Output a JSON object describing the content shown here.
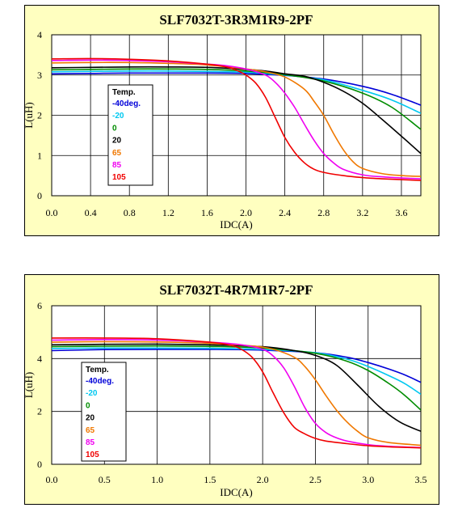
{
  "colors": {
    "panel_bg": "#ffffc0",
    "plot_bg": "#ffffff",
    "series": {
      "-40deg.": "#0000d8",
      "-20": "#00c8f0",
      "0": "#008c00",
      "20": "#000000",
      "65": "#f07800",
      "85": "#f000f0",
      "105": "#f00000"
    }
  },
  "chart_data": [
    {
      "type": "line",
      "title": "SLF7032T-3R3M1R9-2PF",
      "xlabel": "IDC(A)",
      "ylabel": "L(uH)",
      "xlim": [
        0,
        3.8
      ],
      "ylim": [
        0,
        4
      ],
      "xticks": [
        "0.0",
        "0.4",
        "0.8",
        "1.2",
        "1.6",
        "2.0",
        "2.4",
        "2.8",
        "3.2",
        "3.6"
      ],
      "yticks": [
        "0",
        "1",
        "2",
        "3",
        "4"
      ],
      "grid": true,
      "legend": {
        "title": "Temp.",
        "placement": "center-left"
      },
      "series": [
        {
          "name": "-40deg.",
          "x": [
            0,
            0.4,
            0.8,
            1.2,
            1.6,
            2.0,
            2.4,
            2.8,
            3.2,
            3.5,
            3.8
          ],
          "y": [
            3.03,
            3.04,
            3.05,
            3.05,
            3.05,
            3.04,
            2.99,
            2.9,
            2.72,
            2.52,
            2.25
          ]
        },
        {
          "name": "-20",
          "x": [
            0,
            0.4,
            0.8,
            1.2,
            1.6,
            2.0,
            2.4,
            2.8,
            3.2,
            3.5,
            3.8
          ],
          "y": [
            3.08,
            3.09,
            3.1,
            3.1,
            3.09,
            3.07,
            3.0,
            2.88,
            2.62,
            2.38,
            2.05
          ]
        },
        {
          "name": "0",
          "x": [
            0,
            0.4,
            0.8,
            1.2,
            1.6,
            2.0,
            2.4,
            2.8,
            3.2,
            3.5,
            3.8
          ],
          "y": [
            3.13,
            3.14,
            3.15,
            3.15,
            3.14,
            3.1,
            3.01,
            2.85,
            2.55,
            2.2,
            1.65
          ]
        },
        {
          "name": "20",
          "x": [
            0,
            0.4,
            0.8,
            1.2,
            1.6,
            2.0,
            2.2,
            2.4,
            2.6,
            2.8,
            3.0,
            3.2,
            3.4,
            3.6,
            3.8
          ],
          "y": [
            3.18,
            3.19,
            3.2,
            3.2,
            3.19,
            3.14,
            3.1,
            3.03,
            2.97,
            2.82,
            2.6,
            2.3,
            1.9,
            1.48,
            1.05
          ]
        },
        {
          "name": "65",
          "x": [
            0,
            0.4,
            0.8,
            1.2,
            1.6,
            2.0,
            2.2,
            2.4,
            2.6,
            2.7,
            2.8,
            2.9,
            3.0,
            3.1,
            3.2,
            3.4,
            3.6,
            3.8
          ],
          "y": [
            3.3,
            3.31,
            3.31,
            3.29,
            3.25,
            3.15,
            3.08,
            2.95,
            2.65,
            2.35,
            2.0,
            1.55,
            1.15,
            0.85,
            0.68,
            0.55,
            0.5,
            0.48
          ]
        },
        {
          "name": "85",
          "x": [
            0,
            0.4,
            0.8,
            1.2,
            1.6,
            1.8,
            2.0,
            2.2,
            2.3,
            2.4,
            2.5,
            2.6,
            2.7,
            2.8,
            2.9,
            3.0,
            3.2,
            3.4,
            3.6,
            3.8
          ],
          "y": [
            3.36,
            3.37,
            3.36,
            3.33,
            3.27,
            3.23,
            3.15,
            3.0,
            2.82,
            2.55,
            2.2,
            1.78,
            1.38,
            1.05,
            0.82,
            0.66,
            0.52,
            0.47,
            0.44,
            0.42
          ]
        },
        {
          "name": "105",
          "x": [
            0,
            0.4,
            0.8,
            1.2,
            1.6,
            1.8,
            1.9,
            2.0,
            2.1,
            2.2,
            2.3,
            2.4,
            2.5,
            2.6,
            2.7,
            2.8,
            3.0,
            3.2,
            3.4,
            3.6,
            3.8
          ],
          "y": [
            3.4,
            3.41,
            3.39,
            3.35,
            3.27,
            3.2,
            3.12,
            3.0,
            2.8,
            2.45,
            1.95,
            1.45,
            1.08,
            0.82,
            0.66,
            0.58,
            0.5,
            0.45,
            0.42,
            0.4,
            0.38
          ]
        }
      ]
    },
    {
      "type": "line",
      "title": "SLF7032T-4R7M1R7-2PF",
      "xlabel": "IDC(A)",
      "ylabel": "L(uH)",
      "xlim": [
        0,
        3.5
      ],
      "ylim": [
        0,
        6
      ],
      "xticks": [
        "0.0",
        "0.5",
        "1.0",
        "1.5",
        "2.0",
        "2.5",
        "3.0",
        "3.5"
      ],
      "yticks": [
        "0",
        "2",
        "4",
        "6"
      ],
      "grid": true,
      "legend": {
        "title": "Temp.",
        "placement": "center-left"
      },
      "series": [
        {
          "name": "-40deg.",
          "x": [
            0,
            0.5,
            1.0,
            1.5,
            2.0,
            2.5,
            2.8,
            3.0,
            3.2,
            3.35,
            3.5
          ],
          "y": [
            4.3,
            4.34,
            4.35,
            4.35,
            4.32,
            4.22,
            4.05,
            3.85,
            3.6,
            3.38,
            3.1
          ]
        },
        {
          "name": "-20",
          "x": [
            0,
            0.5,
            1.0,
            1.5,
            2.0,
            2.5,
            2.8,
            3.0,
            3.2,
            3.35,
            3.5
          ],
          "y": [
            4.38,
            4.4,
            4.4,
            4.39,
            4.35,
            4.22,
            3.98,
            3.7,
            3.35,
            3.05,
            2.65
          ]
        },
        {
          "name": "0",
          "x": [
            0,
            0.5,
            1.0,
            1.5,
            2.0,
            2.5,
            2.8,
            3.0,
            3.2,
            3.35,
            3.5
          ],
          "y": [
            4.45,
            4.47,
            4.48,
            4.46,
            4.4,
            4.2,
            3.9,
            3.55,
            3.05,
            2.6,
            2.05
          ]
        },
        {
          "name": "20",
          "x": [
            0,
            0.5,
            1.0,
            1.5,
            2.0,
            2.3,
            2.5,
            2.7,
            2.9,
            3.1,
            3.3,
            3.5
          ],
          "y": [
            4.52,
            4.54,
            4.55,
            4.52,
            4.45,
            4.3,
            4.12,
            3.75,
            3.0,
            2.2,
            1.6,
            1.25
          ]
        },
        {
          "name": "65",
          "x": [
            0,
            0.5,
            1.0,
            1.5,
            1.9,
            2.1,
            2.3,
            2.4,
            2.5,
            2.6,
            2.7,
            2.8,
            2.9,
            3.0,
            3.2,
            3.5
          ],
          "y": [
            4.62,
            4.64,
            4.63,
            4.58,
            4.48,
            4.35,
            4.05,
            3.7,
            3.2,
            2.6,
            2.05,
            1.6,
            1.25,
            1.0,
            0.82,
            0.72
          ]
        },
        {
          "name": "85",
          "x": [
            0,
            0.5,
            1.0,
            1.5,
            1.8,
            2.0,
            2.1,
            2.2,
            2.3,
            2.4,
            2.5,
            2.6,
            2.7,
            2.8,
            3.0,
            3.2,
            3.5
          ],
          "y": [
            4.7,
            4.72,
            4.7,
            4.62,
            4.52,
            4.35,
            4.1,
            3.65,
            2.95,
            2.15,
            1.55,
            1.2,
            1.0,
            0.88,
            0.74,
            0.68,
            0.63
          ]
        },
        {
          "name": "105",
          "x": [
            0,
            0.5,
            1.0,
            1.5,
            1.7,
            1.8,
            1.9,
            2.0,
            2.1,
            2.2,
            2.3,
            2.4,
            2.5,
            2.6,
            2.8,
            3.0,
            3.2,
            3.5
          ],
          "y": [
            4.78,
            4.78,
            4.75,
            4.62,
            4.5,
            4.35,
            4.05,
            3.5,
            2.7,
            1.95,
            1.4,
            1.15,
            0.98,
            0.88,
            0.78,
            0.7,
            0.66,
            0.62
          ]
        }
      ]
    }
  ]
}
